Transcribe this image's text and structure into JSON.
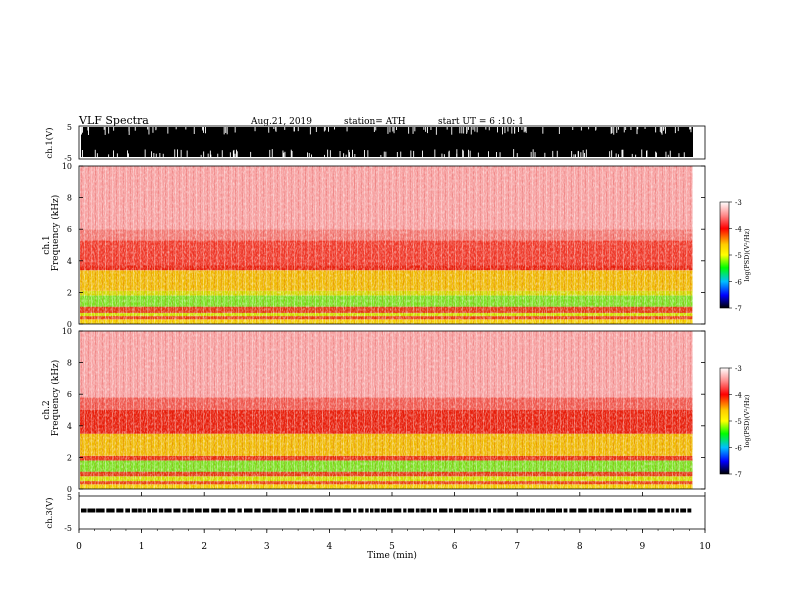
{
  "header": {
    "title": "VLF  Spectra",
    "date": "Aug.21, 2019",
    "station": "station= ATH",
    "start": "start  UT  =    6  :10: 1"
  },
  "chart_data": [
    {
      "type": "line",
      "name": "ch1-waveform",
      "ylabel": "ch.1(V)",
      "ylim": [
        -5,
        5
      ],
      "y_ticks": [
        "5",
        "-5"
      ],
      "fill_range": [
        -5,
        5
      ]
    },
    {
      "type": "heatmap",
      "name": "ch1-spectrogram",
      "ylabel_line1": "ch.1",
      "ylabel_line2": "Frequency  (kHz)",
      "ylim": [
        0,
        10
      ],
      "y_ticks": [
        "0",
        "2",
        "4",
        "6",
        "8",
        "10"
      ],
      "xlim": [
        0,
        9.8
      ],
      "bands": [
        {
          "from": 0.0,
          "to": 0.3,
          "color": "#f4d000"
        },
        {
          "from": 0.3,
          "to": 0.5,
          "color": "#e8400c"
        },
        {
          "from": 0.5,
          "to": 0.7,
          "color": "#cfe000"
        },
        {
          "from": 0.7,
          "to": 1.1,
          "color": "#e23a10"
        },
        {
          "from": 1.1,
          "to": 1.8,
          "color": "#7ce020"
        },
        {
          "from": 1.8,
          "to": 2.1,
          "color": "#d2d800"
        },
        {
          "from": 2.1,
          "to": 3.4,
          "color": "#efb800"
        },
        {
          "from": 3.4,
          "to": 3.7,
          "color": "#e8200c"
        },
        {
          "from": 3.7,
          "to": 5.3,
          "color": "#f03a2a"
        },
        {
          "from": 5.3,
          "to": 6.0,
          "color": "#f27a74"
        },
        {
          "from": 6.0,
          "to": 10.0,
          "color": "#f7a0a0"
        }
      ]
    },
    {
      "type": "heatmap",
      "name": "ch2-spectrogram",
      "ylabel_line1": "ch.2",
      "ylabel_line2": "Frequency  (kHz)",
      "ylim": [
        0,
        10
      ],
      "y_ticks": [
        "0",
        "2",
        "4",
        "6",
        "8",
        "10"
      ],
      "xlim": [
        0,
        9.8
      ],
      "bands": [
        {
          "from": 0.0,
          "to": 0.3,
          "color": "#f4d000"
        },
        {
          "from": 0.3,
          "to": 0.5,
          "color": "#e8400c"
        },
        {
          "from": 0.5,
          "to": 0.8,
          "color": "#cfe000"
        },
        {
          "from": 0.8,
          "to": 1.1,
          "color": "#e23a10"
        },
        {
          "from": 1.1,
          "to": 1.8,
          "color": "#7ce020"
        },
        {
          "from": 1.8,
          "to": 2.1,
          "color": "#e8300c"
        },
        {
          "from": 2.1,
          "to": 3.5,
          "color": "#efb800"
        },
        {
          "from": 3.5,
          "to": 5.0,
          "color": "#e8200c"
        },
        {
          "from": 5.0,
          "to": 5.8,
          "color": "#f05a50"
        },
        {
          "from": 5.8,
          "to": 10.0,
          "color": "#f7a0a0"
        }
      ]
    },
    {
      "type": "line",
      "name": "ch3-waveform",
      "ylabel": "ch.3(V)",
      "ylim": [
        -5,
        5
      ],
      "y_ticks": [
        "5",
        "-5"
      ],
      "level": 0,
      "xlabel": "Time  (min)",
      "xlim": [
        0,
        10
      ],
      "x_ticks": [
        "0",
        "1",
        "2",
        "3",
        "4",
        "5",
        "6",
        "7",
        "8",
        "9",
        "10"
      ]
    }
  ],
  "colorbar": {
    "label": "log(PSD)(V²/Hz)",
    "ticks": [
      "-3",
      "-4",
      "-5",
      "-6",
      "-7"
    ],
    "range": [
      -7,
      -3
    ],
    "colors": [
      "#ffffff",
      "#ff8080",
      "#ff0000",
      "#ffc000",
      "#ffff00",
      "#00ff00",
      "#00c0ff",
      "#0000ff",
      "#000000"
    ]
  }
}
